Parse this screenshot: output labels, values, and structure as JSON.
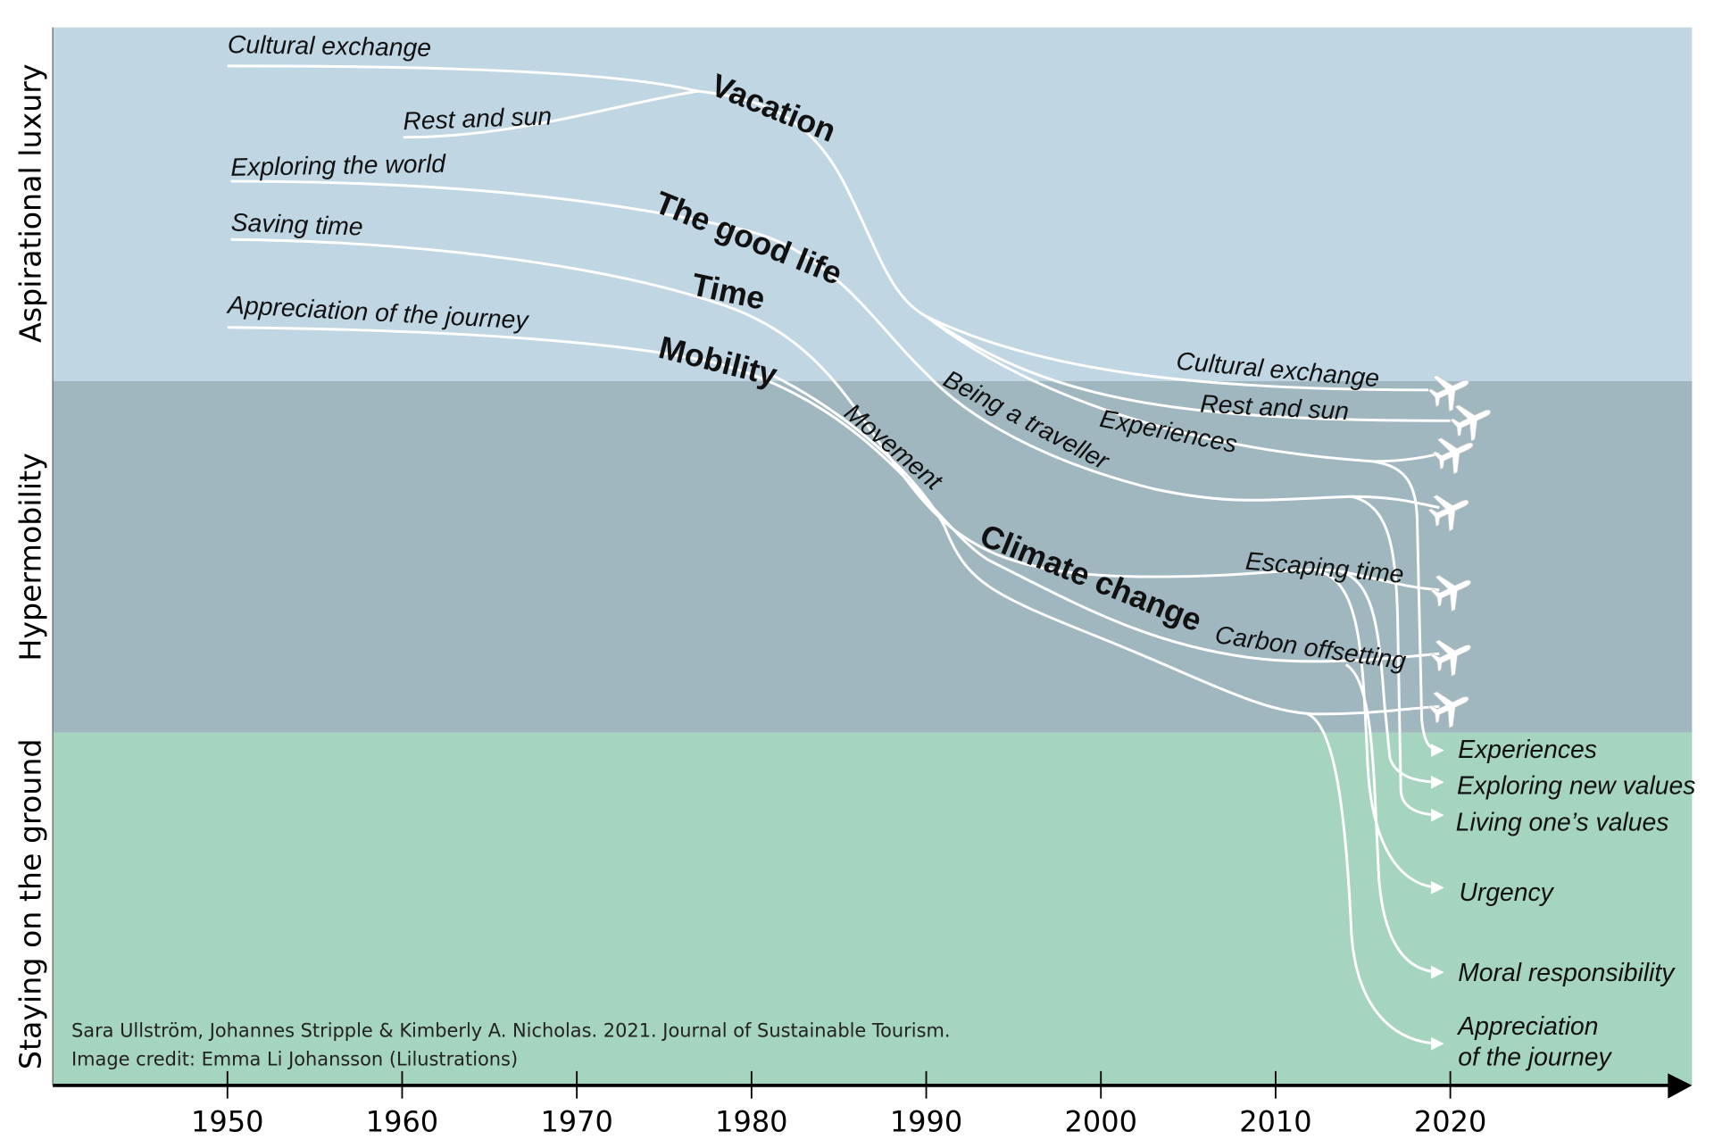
{
  "bands": [
    {
      "label": "Aspirational luxury",
      "color": "#c0d6e2"
    },
    {
      "label": "Hypermobility",
      "color": "#a0b7bf"
    },
    {
      "label": "Staying on the ground",
      "color": "#a5d4bf"
    }
  ],
  "axis": {
    "years": [
      "1950",
      "1960",
      "1970",
      "1980",
      "1990",
      "2000",
      "2010",
      "2020"
    ]
  },
  "labels": {
    "cultural_exchange_start": "Cultural exchange",
    "rest_and_sun_start": "Rest and sun",
    "exploring_the_world": "Exploring the world",
    "saving_time": "Saving time",
    "appreciation_start": "Appreciation of the journey",
    "vacation": "Vacation",
    "good_life": "The good life",
    "time": "Time",
    "mobility": "Mobility",
    "being_a_traveller": "Being a traveller",
    "movement": "Movement",
    "climate_change": "Climate change",
    "cultural_exchange_end": "Cultural exchange",
    "rest_and_sun_end": "Rest and sun",
    "experiences_mid": "Experiences",
    "escaping_time": "Escaping time",
    "carbon_offsetting": "Carbon offsetting"
  },
  "outcomes": {
    "experiences": "Experiences",
    "exploring_new_values": "Exploring new values",
    "living_values": "Living one’s values",
    "urgency": "Urgency",
    "moral_responsibility": "Moral responsibility",
    "appreciation_line1": "Appreciation",
    "appreciation_line2": "of the journey"
  },
  "credit": {
    "line1": "Sara Ullström, Johannes Stripple & Kimberly A. Nicholas. 2021. Journal of Sustainable Tourism.",
    "line2": "Image credit: Emma Li Johansson (Lilustrations)"
  },
  "icons": {
    "plane": "✈"
  }
}
